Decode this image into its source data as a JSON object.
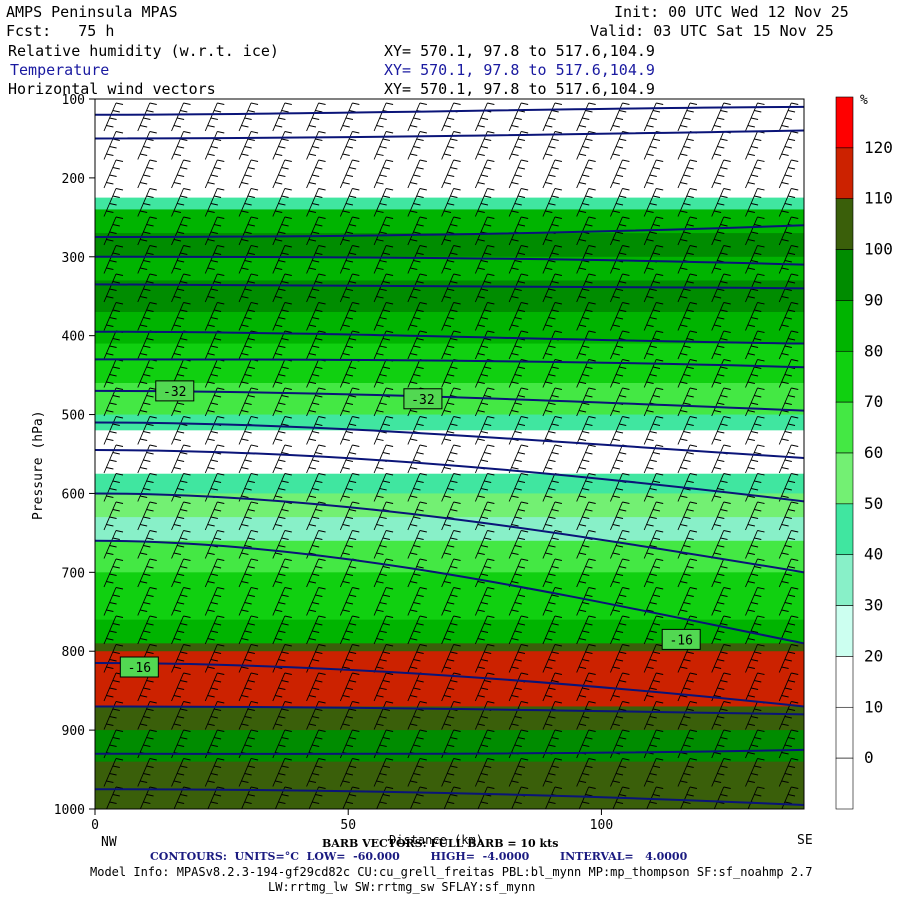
{
  "header": {
    "model_name": "AMPS Peninsula MPAS",
    "forecast": "Fcst:   75 h",
    "init": "Init: 00 UTC Wed 12 Nov 25",
    "valid": "Valid: 03 UTC Sat 15 Nov 25",
    "fields": [
      {
        "label": "Relative humidity (w.r.t. ice)",
        "xy": "XY= 570.1, 97.8 to 517.6,104.9"
      },
      {
        "label": "Temperature",
        "xy": "XY= 570.1, 97.8 to 517.6,104.9"
      },
      {
        "label": "Horizontal wind vectors",
        "xy": "XY= 570.1, 97.8 to 517.6,104.9"
      }
    ]
  },
  "axes": {
    "ylabel": "Pressure (hPa)",
    "xlabel": "Distance (km)",
    "left_end": "NW",
    "right_end": "SE"
  },
  "footer": {
    "barb": "BARB VECTORS: FULL BARB = 10 kts",
    "contours": "CONTOURS:  UNITS=°C  LOW=  -60.000        HIGH=  -4.0000        INTERVAL=   4.0000",
    "model_info_1": "Model Info: MPASv8.2.3-194-gf29cd82c CU:cu_grell_freitas PBL:bl_mynn MP:mp_thompson SF:sf_noahmp 2.7",
    "model_info_2": "LW:rrtmg_lw SW:rrtmg_sw SFLAY:sf_mynn"
  },
  "colorbar": {
    "unit": "%",
    "levels": [
      0,
      10,
      20,
      30,
      40,
      50,
      60,
      70,
      80,
      90,
      100,
      110,
      120
    ],
    "colors": [
      "#ffffff",
      "#ffffff",
      "#ffffff",
      "#ccfff0",
      "#88f0c8",
      "#40e6a0",
      "#73f073",
      "#44e844",
      "#10d010",
      "#00b400",
      "#008c00",
      "#3a5f0a",
      "#cc2200",
      "#ff0000"
    ]
  },
  "chart_data": {
    "type": "heatmap",
    "title": "",
    "xlabel": "Distance (km)",
    "ylabel": "Pressure (hPa)",
    "xlim": [
      0,
      140
    ],
    "ylim": [
      1000,
      100
    ],
    "x_ticks": [
      0,
      50,
      100
    ],
    "y_ticks": [
      100,
      200,
      300,
      400,
      500,
      600,
      700,
      800,
      900,
      1000
    ],
    "rh_layers": [
      {
        "p_top": 100,
        "p_bot": 225,
        "rh": 10
      },
      {
        "p_top": 225,
        "p_bot": 240,
        "rh": 45
      },
      {
        "p_top": 240,
        "p_bot": 270,
        "rh": 80
      },
      {
        "p_top": 270,
        "p_bot": 300,
        "rh": 95
      },
      {
        "p_top": 300,
        "p_bot": 330,
        "rh": 85
      },
      {
        "p_top": 330,
        "p_bot": 370,
        "rh": 95
      },
      {
        "p_top": 370,
        "p_bot": 410,
        "rh": 85
      },
      {
        "p_top": 410,
        "p_bot": 460,
        "rh": 75
      },
      {
        "p_top": 460,
        "p_bot": 500,
        "rh": 65
      },
      {
        "p_top": 500,
        "p_bot": 520,
        "rh": 45
      },
      {
        "p_top": 520,
        "p_bot": 575,
        "rh": 15
      },
      {
        "p_top": 575,
        "p_bot": 600,
        "rh": 45
      },
      {
        "p_top": 600,
        "p_bot": 630,
        "rh": 55
      },
      {
        "p_top": 630,
        "p_bot": 660,
        "rh": 35
      },
      {
        "p_top": 660,
        "p_bot": 700,
        "rh": 60
      },
      {
        "p_top": 700,
        "p_bot": 760,
        "rh": 75
      },
      {
        "p_top": 760,
        "p_bot": 790,
        "rh": 85
      },
      {
        "p_top": 790,
        "p_bot": 800,
        "rh": 100
      },
      {
        "p_top": 800,
        "p_bot": 870,
        "rh": 115
      },
      {
        "p_top": 870,
        "p_bot": 900,
        "rh": 100
      },
      {
        "p_top": 900,
        "p_bot": 940,
        "rh": 90
      },
      {
        "p_top": 940,
        "p_bot": 1000,
        "rh": 100
      }
    ],
    "temperature_contour_labels": [
      {
        "x": 12,
        "p": 470,
        "label": "-32"
      },
      {
        "x": 61,
        "p": 480,
        "label": "-32"
      },
      {
        "x": 5,
        "p": 820,
        "label": "-16"
      },
      {
        "x": 112,
        "p": 785,
        "label": "-16"
      }
    ],
    "temperature_contours_p_left": [
      120,
      150,
      275,
      300,
      335,
      395,
      430,
      470,
      510,
      545,
      600,
      660,
      815,
      870,
      930,
      975
    ],
    "temperature_contours_p_right": [
      110,
      140,
      260,
      310,
      340,
      410,
      440,
      495,
      555,
      610,
      700,
      790,
      870,
      880,
      925,
      995
    ]
  }
}
